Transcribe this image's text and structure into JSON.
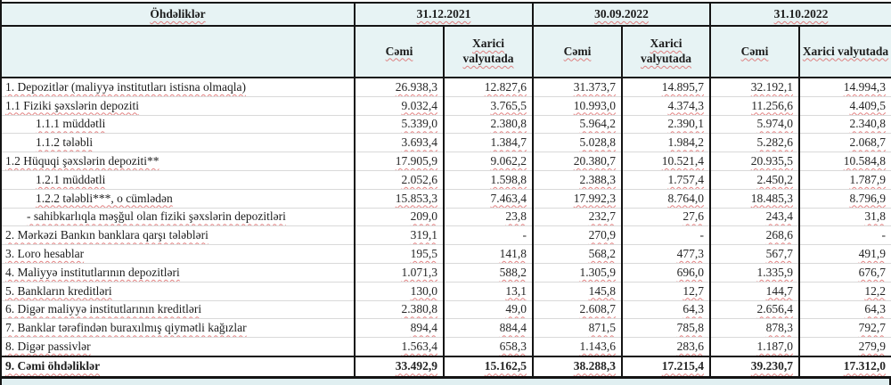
{
  "colors": {
    "header_bg": "#e7f3f4",
    "border": "#141414",
    "gridline": "#d9d9d9",
    "spellcheck_underline": "#d95a5a",
    "bottom_strip_bg": "#e0eff1"
  },
  "header": {
    "title": "Öhdəliklər",
    "dates": [
      "31.12.2021",
      "30.09.2022",
      "31.10.2022"
    ],
    "subcolumns": {
      "total": "Cəmi",
      "foreign": "Xarici valyutada"
    }
  },
  "table": {
    "rows": [
      {
        "label": "1. Depozitlər (maliyyə institutları istisna olmaqla)",
        "indent": 0,
        "values": [
          "26.938,3",
          "12.827,6",
          "31.373,7",
          "14.895,7",
          "32.192,1",
          "14.994,3"
        ]
      },
      {
        "label": "1.1 Fiziki şəxslərin depoziti",
        "indent": 0,
        "values": [
          "9.032,4",
          "3.765,5",
          "10.993,0",
          "4.374,3",
          "11.256,6",
          "4.409,5"
        ]
      },
      {
        "label": "1.1.1 müddətli",
        "indent": 1,
        "values": [
          "5.339,0",
          "2.380,8",
          "5.964,2",
          "2.390,1",
          "5.974,0",
          "2.340,8"
        ]
      },
      {
        "label": "1.1.2 tələbli",
        "indent": 1,
        "values": [
          "3.693,4",
          "1.384,7",
          "5.028,8",
          "1.984,2",
          "5.282,6",
          "2.068,7"
        ]
      },
      {
        "label": "1.2 Hüquqi şəxslərin depoziti**",
        "indent": 0,
        "values": [
          "17.905,9",
          "9.062,2",
          "20.380,7",
          "10.521,4",
          "20.935,5",
          "10.584,8"
        ]
      },
      {
        "label": "1.2.1 müddətli",
        "indent": 1,
        "values": [
          "2.052,6",
          "1.598,8",
          "2.388,3",
          "1.757,4",
          "2.450,2",
          "1.787,9"
        ]
      },
      {
        "label": "1.2.2 tələbli***, o cümlədən",
        "indent": 1,
        "values": [
          "15.853,3",
          "7.463,4",
          "17.992,3",
          "8.764,0",
          "18.485,3",
          "8.796,9"
        ]
      },
      {
        "label": "- sahibkarlıqla məşğul olan fiziki şəxslərin depozitləri",
        "indent": 2,
        "values": [
          "209,0",
          "23,8",
          "232,7",
          "27,6",
          "243,4",
          "31,8"
        ]
      },
      {
        "label": "2. Mərkəzi Bankın banklara qarşı tələbləri",
        "indent": 0,
        "values": [
          "319,1",
          "-",
          "270,9",
          "-",
          "268,6",
          "-"
        ]
      },
      {
        "label": "3. Loro hesablar",
        "indent": 0,
        "values": [
          "195,5",
          "141,8",
          "568,2",
          "477,3",
          "567,7",
          "491,9"
        ]
      },
      {
        "label": "4. Maliyyə institutlarının  depozitləri",
        "indent": 0,
        "values": [
          "1.071,3",
          "588,2",
          "1.305,9",
          "696,0",
          "1.335,9",
          "676,7"
        ]
      },
      {
        "label": "5. Bankların kreditləri",
        "indent": 0,
        "values": [
          "130,0",
          "13,1",
          "145,8",
          "12,7",
          "144,7",
          "12,2"
        ]
      },
      {
        "label": "6. Digər maliyyə institutlarının kreditləri",
        "indent": 0,
        "values": [
          "2.380,8",
          "49,0",
          "2.608,7",
          "64,3",
          "2.656,4",
          "64,3"
        ]
      },
      {
        "label": "7. Banklar tərəfindən buraxılmış qiymətli kağızlar",
        "indent": 0,
        "values": [
          "894,4",
          "884,4",
          "871,5",
          "785,8",
          "878,3",
          "792,7"
        ]
      },
      {
        "label": "8. Digər passivlər",
        "indent": 0,
        "values": [
          "1.563,4",
          "658,3",
          "1.143,6",
          "283,6",
          "1.187,0",
          "279,9"
        ]
      },
      {
        "label": "9. Cəmi öhdəliklər",
        "indent": 0,
        "total": true,
        "values": [
          "33.492,9",
          "15.162,5",
          "38.288,3",
          "17.215,4",
          "39.230,7",
          "17.312,0"
        ]
      }
    ]
  }
}
